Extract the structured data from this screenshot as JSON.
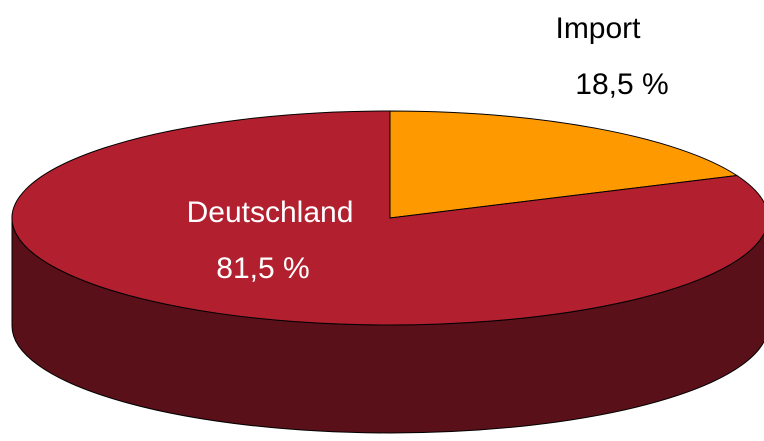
{
  "chart_data": {
    "type": "pie3d",
    "categories": [
      "Import",
      "Deutschland"
    ],
    "values": [
      18.5,
      81.5
    ],
    "value_labels": [
      "18,5 %",
      "81,5 %"
    ],
    "colors": [
      "#ff9900",
      "#b22030"
    ],
    "side_colors": [
      "#a86400",
      "#5a1018"
    ]
  }
}
